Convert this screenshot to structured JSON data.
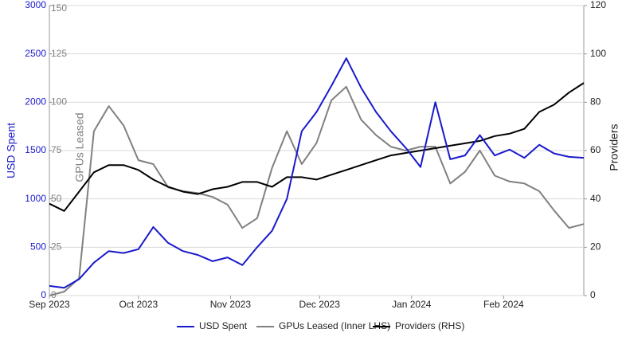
{
  "chart_data": {
    "type": "line",
    "x": [
      0,
      5,
      10,
      15,
      20,
      25,
      30,
      35,
      40,
      45,
      50,
      55,
      60,
      65,
      70,
      75,
      80,
      85,
      90,
      95,
      100,
      105,
      110,
      115,
      120,
      125,
      130,
      135,
      140,
      145,
      150,
      155,
      160,
      165,
      170,
      175,
      180
    ],
    "xlim": [
      0,
      180
    ],
    "xticks": [
      {
        "value": 0,
        "label": "Sep 2023"
      },
      {
        "value": 30,
        "label": "Oct 2023"
      },
      {
        "value": 61,
        "label": "Nov 2023"
      },
      {
        "value": 91,
        "label": "Dec 2023"
      },
      {
        "value": 122,
        "label": "Jan 2024"
      },
      {
        "value": 153,
        "label": "Feb 2024"
      }
    ],
    "ylabel": "USD Spent",
    "ylim": [
      0,
      3000
    ],
    "yticks": [
      0,
      500,
      1000,
      1500,
      2000,
      2500,
      3000
    ],
    "ycolor": "#1a1acc",
    "y3label": "GPUs Leased",
    "y3lim": [
      0,
      150
    ],
    "y3ticks": [
      0,
      25,
      50,
      75,
      100,
      125,
      150
    ],
    "y3color": "#808080",
    "y2label": "Providers",
    "y2lim": [
      0,
      120
    ],
    "y2ticks": [
      0,
      20,
      40,
      60,
      80,
      100,
      120
    ],
    "y2color": "#222222",
    "grid": true,
    "series": [
      {
        "name": "USD Spent",
        "color": "#1a1acc",
        "axis": "y",
        "values": [
          100,
          80,
          170,
          340,
          460,
          440,
          480,
          710,
          545,
          460,
          420,
          355,
          395,
          315,
          500,
          670,
          1000,
          1700,
          1900,
          2170,
          2455,
          2150,
          1900,
          1700,
          1530,
          1330,
          2000,
          1410,
          1450,
          1660,
          1450,
          1510,
          1425,
          1560,
          1470,
          1435,
          1425
        ]
      },
      {
        "name": "GPUs Leased (Inner LHS)",
        "color": "#808080",
        "axis": "y3",
        "values": [
          0,
          2,
          9,
          85,
          98,
          88,
          70,
          68,
          56,
          54,
          53,
          51,
          47,
          35,
          40,
          66,
          85,
          68,
          79,
          101,
          108,
          91,
          83,
          77,
          75,
          77,
          77,
          58,
          64,
          75,
          62,
          59,
          58,
          54,
          44,
          35,
          37
        ]
      },
      {
        "name": "Providers (RHS)",
        "color": "#000000",
        "axis": "y2",
        "values": [
          38,
          35,
          43,
          51,
          54,
          54,
          52,
          48,
          45,
          43,
          42,
          44,
          45,
          47,
          47,
          45,
          49,
          49,
          48,
          50,
          52,
          54,
          56,
          58,
          59,
          60,
          61,
          62,
          63,
          64,
          66,
          67,
          69,
          76,
          79,
          84,
          88
        ]
      }
    ]
  }
}
